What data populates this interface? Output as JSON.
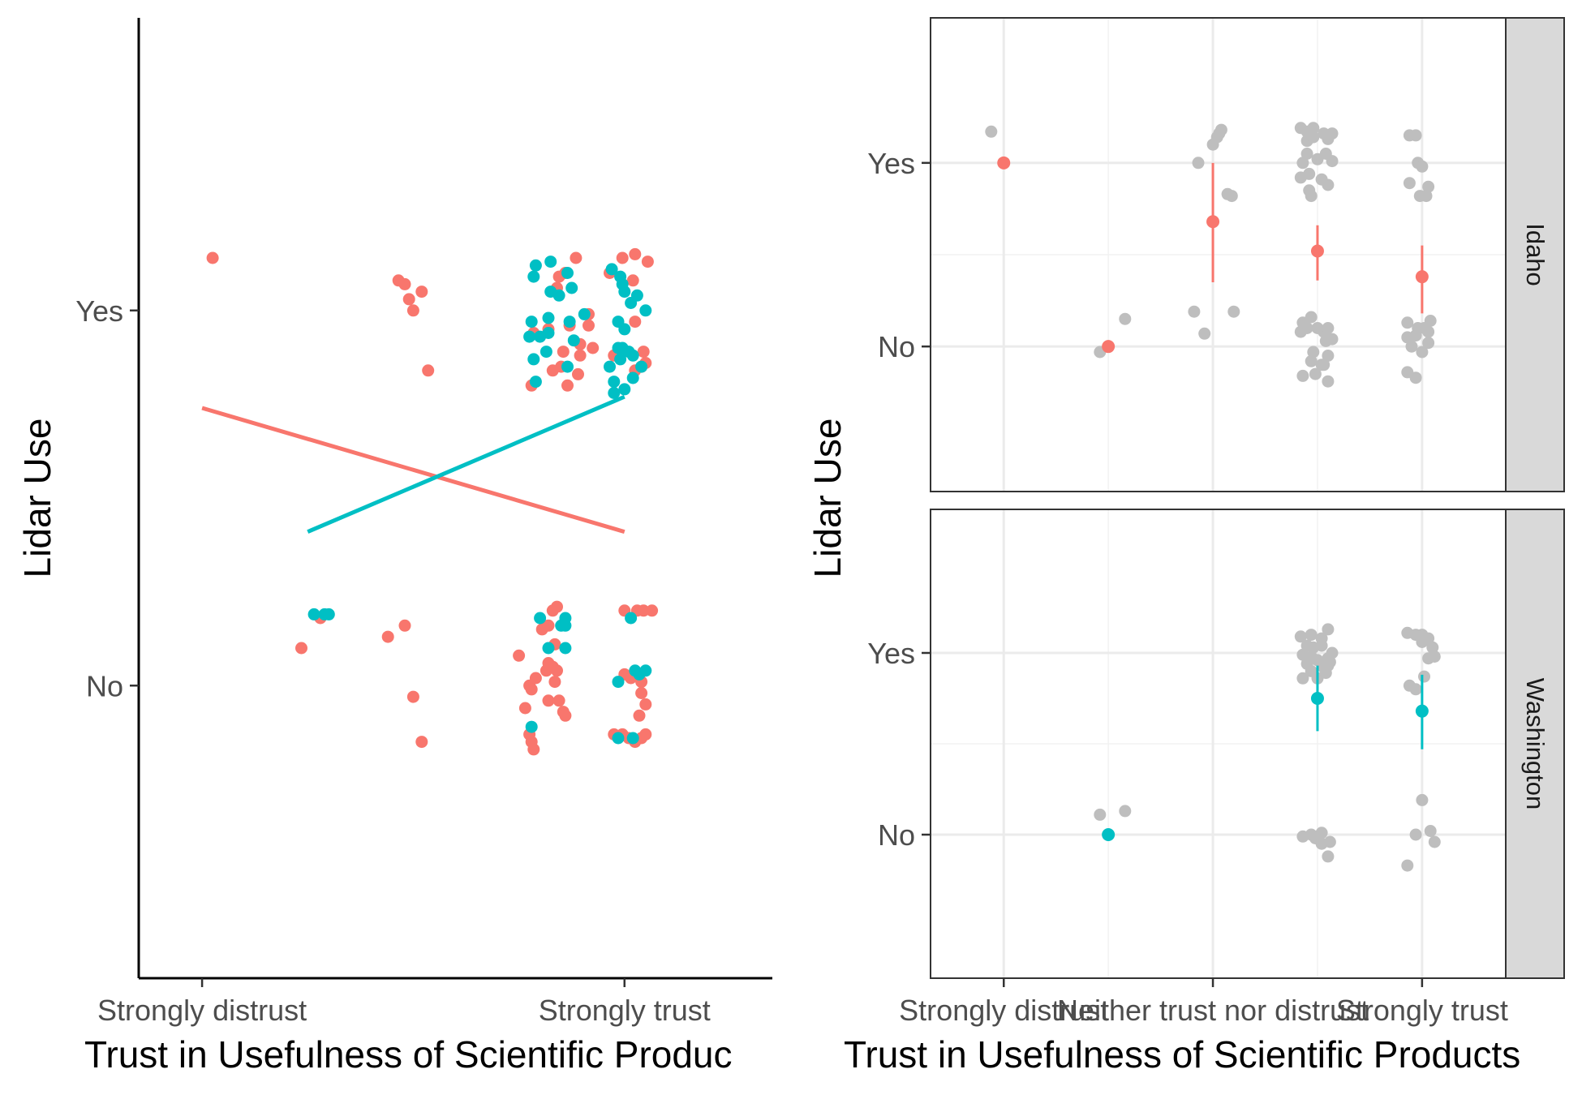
{
  "chart_data": [
    {
      "type": "scatter",
      "title": "",
      "xlabel": "Trust in Usefulness of Scientific Produc",
      "ylabel": "Lidar Use",
      "x_ticks": [
        "Strongly distrust",
        "Strongly trust"
      ],
      "y_ticks": [
        "Yes",
        "No"
      ],
      "xlim": [
        0.7,
        3.7
      ],
      "ylim": [
        -0.78,
        1.78
      ],
      "grid": false,
      "colors": {
        "idaho": "#F8766D",
        "washington": "#00BFC4"
      },
      "fit_lines": [
        {
          "series": "idaho",
          "x": [
            1,
            3
          ],
          "y": [
            0.74,
            0.41
          ]
        },
        {
          "series": "washington",
          "x": [
            1.5,
            3
          ],
          "y": [
            0.41,
            0.77
          ]
        }
      ],
      "series": [
        {
          "color_key": "idaho",
          "points": [
            [
              1.05,
              1.14
            ],
            [
              2.57,
              0.94
            ],
            [
              2.64,
              0.95
            ],
            [
              2.74,
              0.96
            ],
            [
              2.83,
              0.96
            ],
            [
              2.83,
              0.99
            ],
            [
              2.79,
              0.88
            ],
            [
              2.71,
              0.89
            ],
            [
              2.7,
              0.85
            ],
            [
              2.78,
              0.83
            ],
            [
              2.66,
              0.84
            ],
            [
              2.73,
              0.8
            ],
            [
              2.85,
              0.9
            ],
            [
              2.56,
              0.8
            ],
            [
              2.68,
              1.06
            ],
            [
              2.72,
              1.1
            ],
            [
              2.69,
              1.09
            ],
            [
              2.77,
              1.14
            ],
            [
              2.79,
              0.91
            ],
            [
              3.05,
              0.97
            ],
            [
              3.09,
              0.89
            ],
            [
              2.93,
              1.1
            ],
            [
              2.99,
              1.14
            ],
            [
              3.04,
              1.08
            ],
            [
              3.05,
              1.15
            ],
            [
              2.95,
              0.88
            ],
            [
              3.08,
              0.85
            ],
            [
              3.1,
              0.86
            ],
            [
              3.05,
              0.84
            ],
            [
              3.11,
              1.13
            ],
            [
              1.96,
              1.07
            ],
            [
              1.93,
              1.08
            ],
            [
              1.98,
              1.03
            ],
            [
              2.04,
              1.05
            ],
            [
              2.0,
              1.0
            ],
            [
              2.07,
              0.84
            ],
            [
              1.47,
              0.1
            ],
            [
              1.56,
              0.18
            ],
            [
              1.96,
              0.16
            ],
            [
              1.88,
              0.13
            ],
            [
              2.0,
              -0.03
            ],
            [
              2.04,
              -0.15
            ],
            [
              2.5,
              0.08
            ],
            [
              2.55,
              0.0
            ],
            [
              2.58,
              0.02
            ],
            [
              2.56,
              -0.01
            ],
            [
              2.61,
              0.15
            ],
            [
              2.64,
              0.16
            ],
            [
              2.66,
              0.2
            ],
            [
              2.68,
              0.21
            ],
            [
              2.67,
              0.01
            ],
            [
              2.64,
              -0.04
            ],
            [
              2.69,
              -0.04
            ],
            [
              2.71,
              -0.07
            ],
            [
              2.72,
              -0.08
            ],
            [
              2.55,
              -0.13
            ],
            [
              2.56,
              -0.15
            ],
            [
              2.57,
              -0.17
            ],
            [
              2.63,
              0.04
            ],
            [
              2.68,
              0.04
            ],
            [
              2.66,
              0.05
            ],
            [
              2.64,
              0.06
            ],
            [
              2.67,
              0.11
            ],
            [
              2.53,
              -0.06
            ],
            [
              3.0,
              0.2
            ],
            [
              3.06,
              0.2
            ],
            [
              3.09,
              0.2
            ],
            [
              3.13,
              0.2
            ],
            [
              3.0,
              0.03
            ],
            [
              3.03,
              0.02
            ],
            [
              3.08,
              0.01
            ],
            [
              3.08,
              -0.02
            ],
            [
              3.1,
              -0.05
            ],
            [
              3.07,
              -0.08
            ],
            [
              3.1,
              -0.13
            ],
            [
              2.95,
              -0.13
            ],
            [
              2.99,
              -0.13
            ],
            [
              3.02,
              -0.14
            ],
            [
              3.05,
              -0.15
            ],
            [
              3.08,
              -0.14
            ]
          ]
        },
        {
          "color_key": "washington",
          "points": [
            [
              2.57,
              1.09
            ],
            [
              2.58,
              1.12
            ],
            [
              2.65,
              1.13
            ],
            [
              2.65,
              1.05
            ],
            [
              2.73,
              1.1
            ],
            [
              2.75,
              1.06
            ],
            [
              2.69,
              1.04
            ],
            [
              2.64,
              0.98
            ],
            [
              2.74,
              0.97
            ],
            [
              2.81,
              0.99
            ],
            [
              2.64,
              0.94
            ],
            [
              2.76,
              0.92
            ],
            [
              2.55,
              0.93
            ],
            [
              2.57,
              0.87
            ],
            [
              2.63,
              0.89
            ],
            [
              2.58,
              0.81
            ],
            [
              2.73,
              0.85
            ],
            [
              2.6,
              0.93
            ],
            [
              2.56,
              0.97
            ],
            [
              2.99,
              1.07
            ],
            [
              3.0,
              1.05
            ],
            [
              3.03,
              1.02
            ],
            [
              3.06,
              1.04
            ],
            [
              2.94,
              1.11
            ],
            [
              2.98,
              1.09
            ],
            [
              3.1,
              1.0
            ],
            [
              2.93,
              0.85
            ],
            [
              2.98,
              0.87
            ],
            [
              3.04,
              0.88
            ],
            [
              2.97,
              0.9
            ],
            [
              3.02,
              0.89
            ],
            [
              3.04,
              0.82
            ],
            [
              3.08,
              0.85
            ],
            [
              3.0,
              0.79
            ],
            [
              2.95,
              0.78
            ],
            [
              2.95,
              0.81
            ],
            [
              2.99,
              0.9
            ],
            [
              3.0,
              0.95
            ],
            [
              2.97,
              0.97
            ],
            [
              1.53,
              0.19
            ],
            [
              1.58,
              0.19
            ],
            [
              1.6,
              0.19
            ],
            [
              2.6,
              0.18
            ],
            [
              2.7,
              0.16
            ],
            [
              2.72,
              0.16
            ],
            [
              2.72,
              0.18
            ],
            [
              2.64,
              0.1
            ],
            [
              2.72,
              0.1
            ],
            [
              2.56,
              -0.11
            ],
            [
              3.03,
              0.18
            ],
            [
              3.05,
              0.04
            ],
            [
              2.97,
              0.01
            ],
            [
              3.1,
              0.04
            ],
            [
              2.97,
              -0.14
            ],
            [
              3.04,
              -0.14
            ],
            [
              3.07,
              0.03
            ]
          ]
        }
      ]
    },
    {
      "type": "scatter",
      "title": "",
      "xlabel": "Trust in Usefulness of Scientific Products",
      "ylabel": "Lidar Use",
      "x_ticks": [
        "Strongly distrust",
        "Neither trust nor distrust",
        "Strongly trust"
      ],
      "y_ticks": [
        "Yes",
        "No"
      ],
      "xlim": [
        0.65,
        3.4
      ],
      "ylim": [
        -0.79,
        1.79
      ],
      "grid": true,
      "raw_point_color": "#BEBEBE",
      "facets": [
        {
          "label": "Idaho",
          "color_key": "idaho",
          "color": "#F8766D",
          "means": [
            {
              "x": 1.0,
              "y": 1.0
            },
            {
              "x": 1.5,
              "y": 0.0
            },
            {
              "x": 2.0,
              "y": 0.68,
              "low": 0.35,
              "high": 1.0
            },
            {
              "x": 2.5,
              "y": 0.52,
              "low": 0.36,
              "high": 0.66
            },
            {
              "x": 3.0,
              "y": 0.38,
              "low": 0.18,
              "high": 0.55
            }
          ],
          "raw_points": [
            [
              0.94,
              1.17
            ],
            [
              1.46,
              -0.03
            ],
            [
              1.58,
              0.15
            ],
            [
              1.93,
              1.0
            ],
            [
              2.0,
              1.1
            ],
            [
              2.02,
              1.14
            ],
            [
              2.03,
              1.16
            ],
            [
              2.04,
              1.18
            ],
            [
              2.07,
              0.83
            ],
            [
              2.09,
              0.82
            ],
            [
              1.91,
              0.19
            ],
            [
              1.96,
              0.07
            ],
            [
              2.1,
              0.19
            ],
            [
              2.42,
              1.19
            ],
            [
              2.45,
              1.17
            ],
            [
              2.48,
              1.19
            ],
            [
              2.45,
              1.12
            ],
            [
              2.48,
              1.14
            ],
            [
              2.53,
              1.16
            ],
            [
              2.55,
              1.13
            ],
            [
              2.45,
              1.05
            ],
            [
              2.5,
              1.02
            ],
            [
              2.54,
              1.05
            ],
            [
              2.57,
              1.01
            ],
            [
              2.43,
              1.0
            ],
            [
              2.46,
              0.94
            ],
            [
              2.42,
              0.92
            ],
            [
              2.52,
              0.91
            ],
            [
              2.55,
              0.88
            ],
            [
              2.46,
              0.85
            ],
            [
              2.47,
              0.82
            ],
            [
              2.57,
              1.16
            ],
            [
              2.43,
              0.13
            ],
            [
              2.47,
              0.16
            ],
            [
              2.5,
              0.1
            ],
            [
              2.53,
              0.08
            ],
            [
              2.45,
              0.1
            ],
            [
              2.54,
              0.03
            ],
            [
              2.57,
              0.04
            ],
            [
              2.47,
              -0.08
            ],
            [
              2.43,
              -0.16
            ],
            [
              2.49,
              -0.15
            ],
            [
              2.55,
              -0.19
            ],
            [
              2.52,
              -0.1
            ],
            [
              2.55,
              -0.05
            ],
            [
              2.42,
              0.08
            ],
            [
              2.55,
              0.1
            ],
            [
              2.48,
              -0.03
            ],
            [
              2.53,
              -0.1
            ],
            [
              2.94,
              1.15
            ],
            [
              2.97,
              1.15
            ],
            [
              2.98,
              1.0
            ],
            [
              3.0,
              0.98
            ],
            [
              2.94,
              0.89
            ],
            [
              2.99,
              0.82
            ],
            [
              3.02,
              0.82
            ],
            [
              3.03,
              0.87
            ],
            [
              2.93,
              0.13
            ],
            [
              2.97,
              0.06
            ],
            [
              3.01,
              0.1
            ],
            [
              3.04,
              0.14
            ],
            [
              2.93,
              0.05
            ],
            [
              2.98,
              0.1
            ],
            [
              3.03,
              0.08
            ],
            [
              2.95,
              0.0
            ],
            [
              3.0,
              -0.03
            ],
            [
              2.93,
              -0.14
            ],
            [
              2.97,
              -0.17
            ],
            [
              3.03,
              0.02
            ]
          ]
        },
        {
          "label": "Washington",
          "color_key": "washington",
          "color": "#00BFC4",
          "means": [
            {
              "x": 1.5,
              "y": 0.0
            },
            {
              "x": 2.5,
              "y": 0.75,
              "low": 0.57,
              "high": 0.93
            },
            {
              "x": 3.0,
              "y": 0.68,
              "low": 0.47,
              "high": 0.88
            }
          ],
          "raw_points": [
            [
              1.46,
              0.11
            ],
            [
              1.58,
              0.13
            ],
            [
              2.42,
              1.09
            ],
            [
              2.47,
              1.1
            ],
            [
              2.52,
              1.08
            ],
            [
              2.55,
              1.13
            ],
            [
              2.45,
              1.04
            ],
            [
              2.48,
              1.03
            ],
            [
              2.52,
              1.04
            ],
            [
              2.43,
              0.99
            ],
            [
              2.47,
              0.98
            ],
            [
              2.5,
              0.96
            ],
            [
              2.55,
              0.97
            ],
            [
              2.47,
              0.9
            ],
            [
              2.53,
              0.92
            ],
            [
              2.55,
              0.93
            ],
            [
              2.43,
              0.86
            ],
            [
              2.5,
              0.86
            ],
            [
              2.54,
              0.89
            ],
            [
              2.57,
              1.0
            ],
            [
              2.56,
              0.95
            ],
            [
              2.45,
              0.94
            ],
            [
              2.93,
              1.11
            ],
            [
              2.97,
              1.1
            ],
            [
              3.0,
              1.1
            ],
            [
              3.0,
              1.06
            ],
            [
              3.03,
              1.08
            ],
            [
              3.05,
              1.03
            ],
            [
              3.06,
              0.98
            ],
            [
              3.03,
              0.97
            ],
            [
              2.94,
              0.82
            ],
            [
              2.97,
              0.8
            ],
            [
              3.01,
              0.87
            ],
            [
              2.93,
              -0.17
            ],
            [
              2.97,
              0.0
            ],
            [
              3.0,
              0.19
            ],
            [
              3.04,
              0.02
            ],
            [
              3.06,
              -0.04
            ],
            [
              2.43,
              -0.01
            ],
            [
              2.47,
              0.0
            ],
            [
              2.52,
              0.01
            ],
            [
              2.52,
              -0.05
            ],
            [
              2.56,
              -0.04
            ],
            [
              2.55,
              -0.12
            ],
            [
              2.49,
              -0.02
            ]
          ]
        }
      ]
    }
  ]
}
